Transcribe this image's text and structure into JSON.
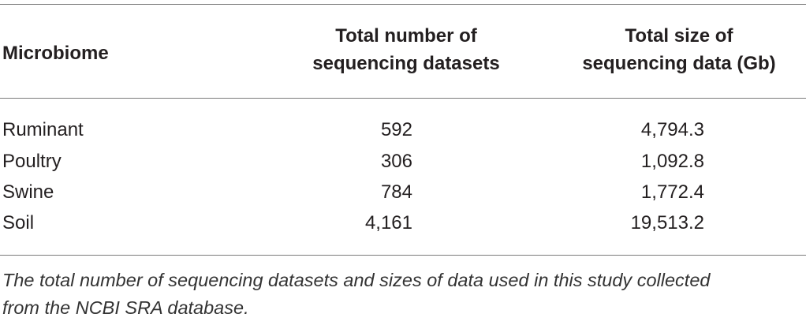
{
  "table": {
    "headers": {
      "microbiome": "Microbiome",
      "datasets": [
        "Total number of",
        "sequencing datasets"
      ],
      "size": [
        "Total size of",
        "sequencing data (Gb)"
      ]
    },
    "rows": [
      {
        "microbiome": "Ruminant",
        "datasets": "592",
        "size": "4,794.3"
      },
      {
        "microbiome": "Poultry",
        "datasets": "306",
        "size": "1,092.8"
      },
      {
        "microbiome": "Swine",
        "datasets": "784",
        "size": "1,772.4"
      },
      {
        "microbiome": "Soil",
        "datasets": "4,161",
        "size": "19,513.2"
      }
    ]
  },
  "caption": [
    "The total number of sequencing datasets and sizes of data used in this study collected",
    "from the NCBI SRA database."
  ]
}
